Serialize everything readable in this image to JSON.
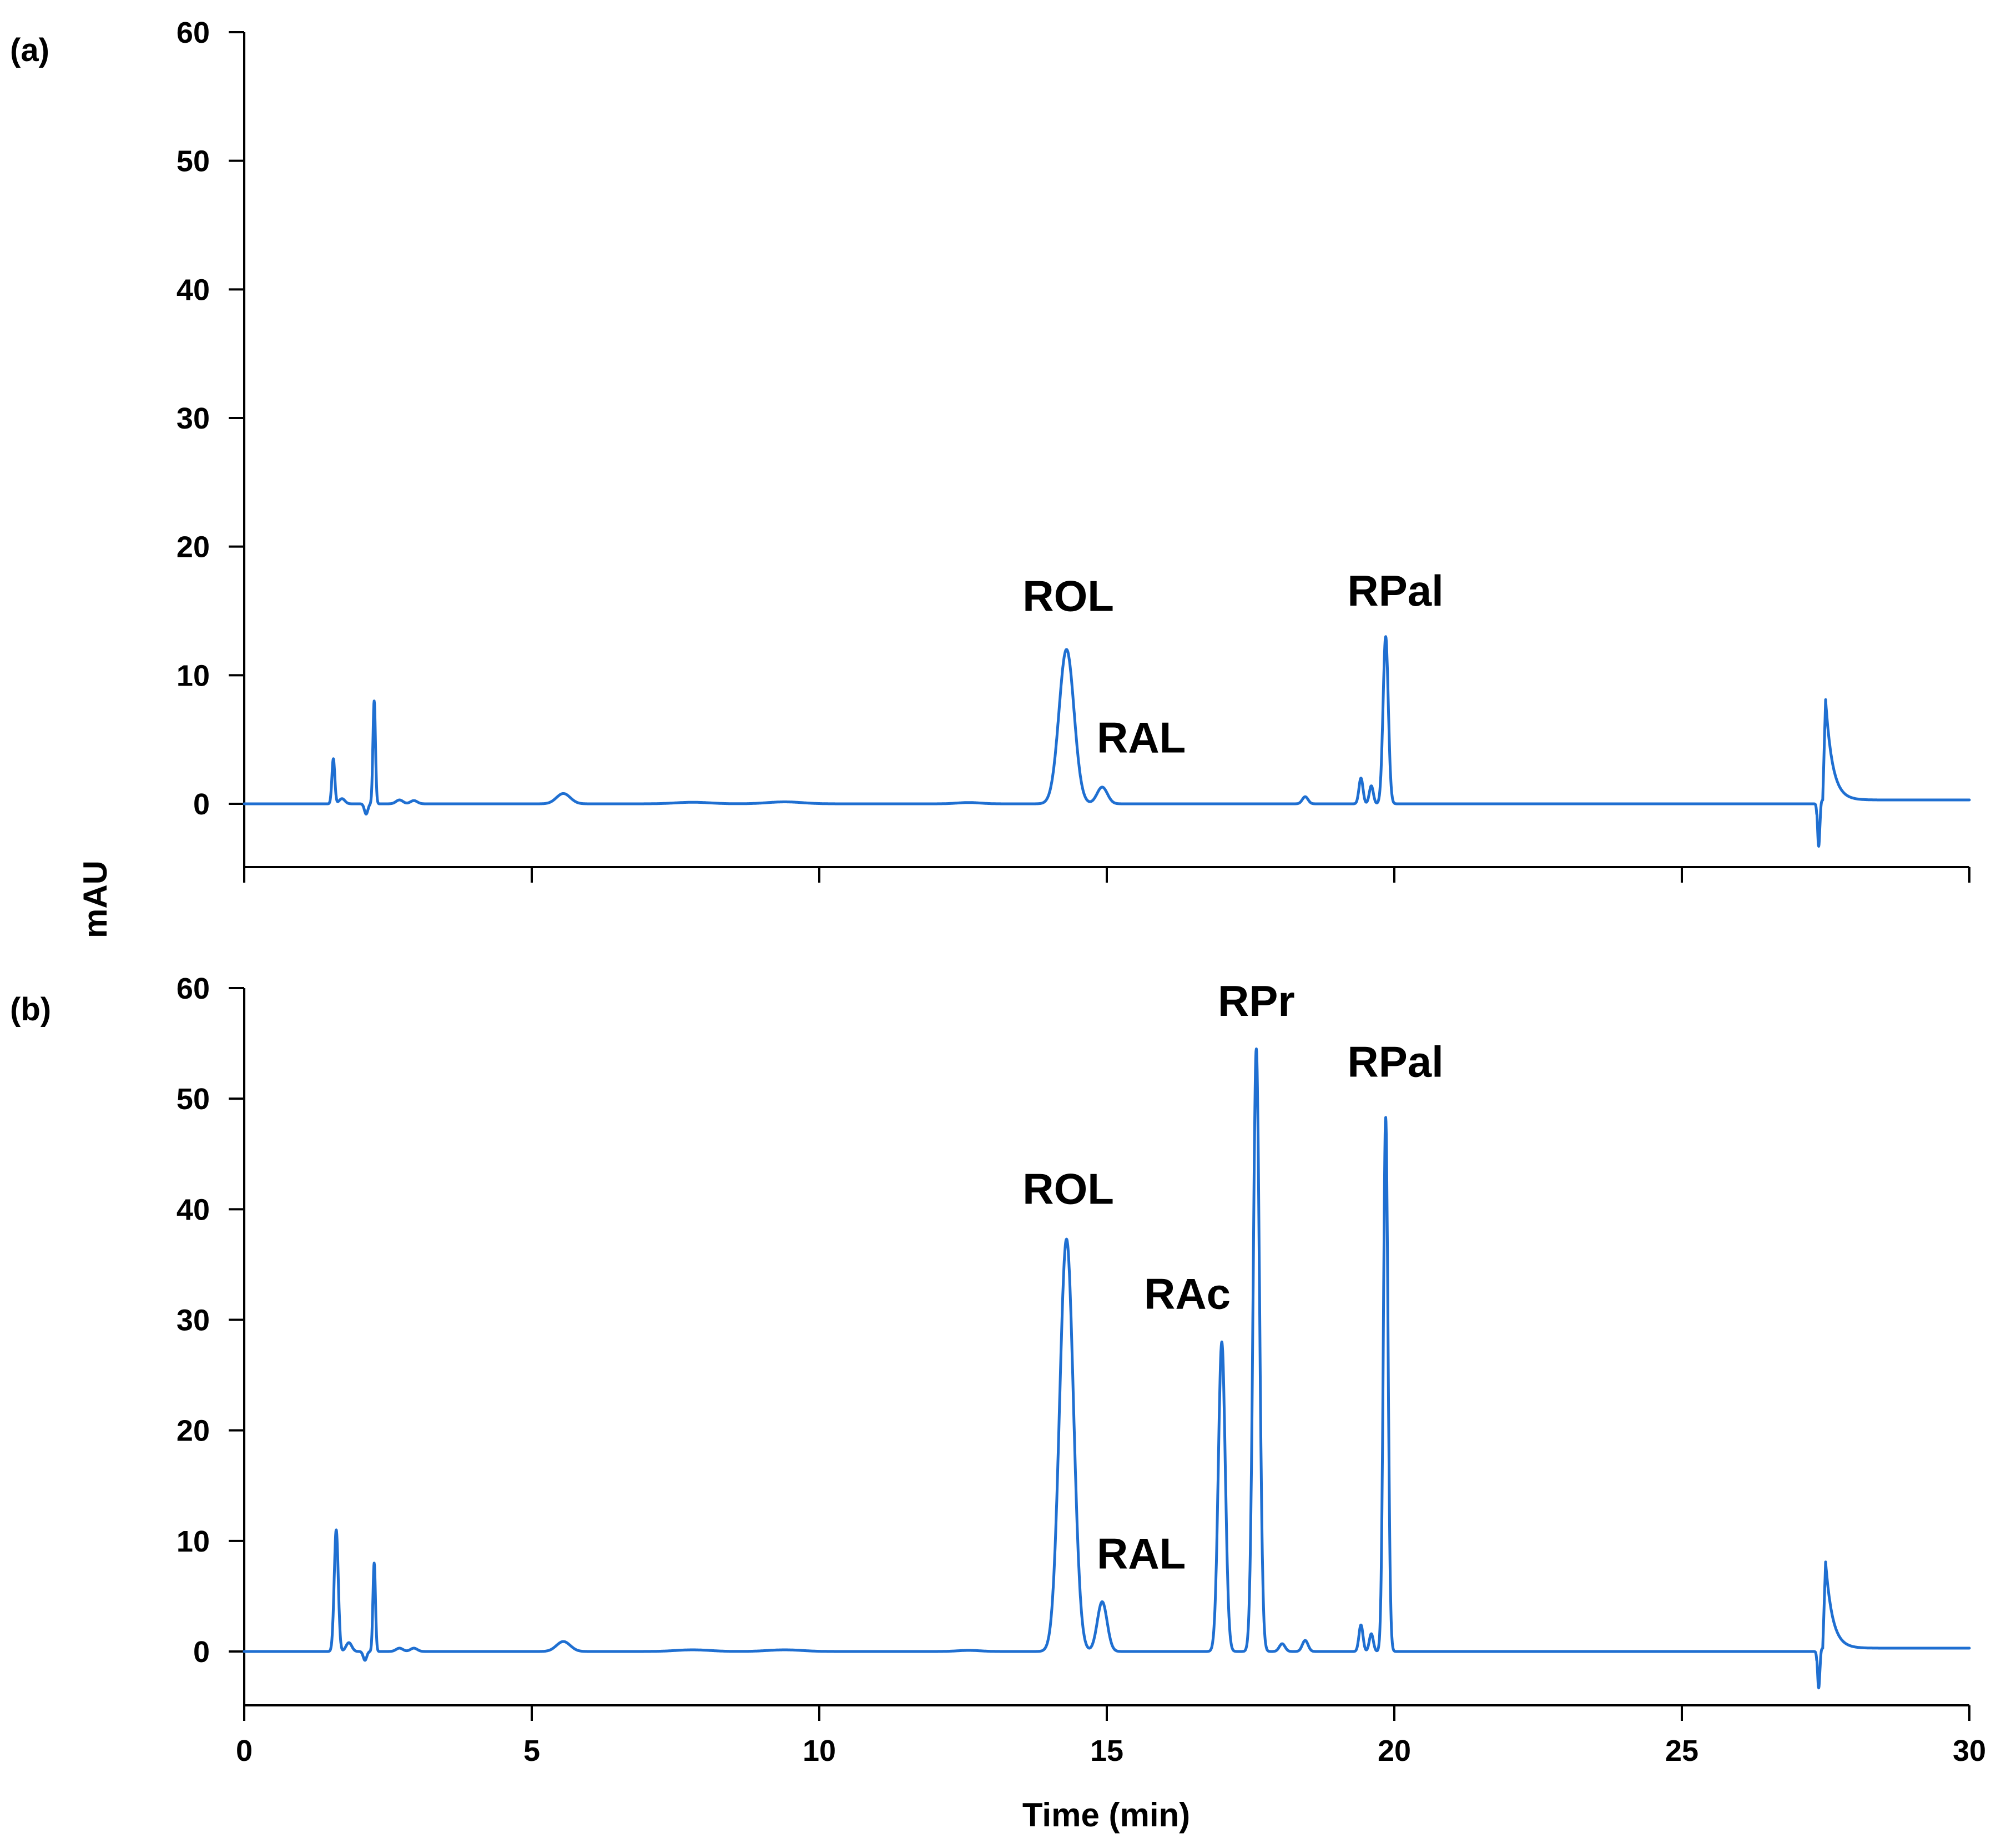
{
  "chart_data": [
    {
      "type": "line",
      "panel_label": "(a)",
      "xlim": [
        0,
        30
      ],
      "ylim": [
        -5,
        60
      ],
      "xticks": [
        0,
        5,
        10,
        15,
        20,
        25,
        30
      ],
      "yticks": [
        0,
        10,
        20,
        30,
        40,
        50,
        60
      ],
      "xlabel": "",
      "ylabel": "mAU",
      "series_color": "#1f6fd1",
      "baseline": 0,
      "peaks": [
        {
          "t": 1.55,
          "h": 3.5,
          "w": 0.025
        },
        {
          "t": 1.7,
          "h": 0.4,
          "w": 0.05
        },
        {
          "t": 2.12,
          "h": -0.8,
          "w": 0.03
        },
        {
          "t": 2.26,
          "h": 8.0,
          "w": 0.022
        },
        {
          "t": 2.7,
          "h": 0.3,
          "w": 0.06
        },
        {
          "t": 2.95,
          "h": 0.25,
          "w": 0.06
        },
        {
          "t": 5.55,
          "h": 0.8,
          "w": 0.12
        },
        {
          "t": 7.8,
          "h": 0.12,
          "w": 0.3
        },
        {
          "t": 9.4,
          "h": 0.15,
          "w": 0.3
        },
        {
          "t": 12.6,
          "h": 0.1,
          "w": 0.2
        },
        {
          "t": 14.3,
          "h": 12.0,
          "w": 0.13
        },
        {
          "t": 14.92,
          "h": 1.3,
          "w": 0.09
        },
        {
          "t": 18.45,
          "h": 0.55,
          "w": 0.05
        },
        {
          "t": 19.42,
          "h": 2.0,
          "w": 0.035
        },
        {
          "t": 19.6,
          "h": 1.4,
          "w": 0.035
        },
        {
          "t": 19.85,
          "h": 13.0,
          "w": 0.045
        }
      ],
      "step": {
        "t": 27.35,
        "after": 0.3
      },
      "artifact": {
        "dip_t": 27.38,
        "dip_h": -3.6,
        "peak_t": 27.5,
        "peak_h": 7.8
      },
      "annotations": [
        {
          "text": "ROL",
          "x": 14.33,
          "y": 15.0
        },
        {
          "text": "RAL",
          "x": 15.6,
          "y": 4.0
        },
        {
          "text": "RPal",
          "x": 20.02,
          "y": 15.4
        }
      ]
    },
    {
      "type": "line",
      "panel_label": "(b)",
      "xlim": [
        0,
        30
      ],
      "ylim": [
        -5,
        60
      ],
      "xticks": [
        0,
        5,
        10,
        15,
        20,
        25,
        30
      ],
      "yticks": [
        0,
        10,
        20,
        30,
        40,
        50,
        60
      ],
      "xlabel": "Time (min)",
      "ylabel": "mAU",
      "series_color": "#1f6fd1",
      "baseline": 0,
      "peaks": [
        {
          "t": 1.6,
          "h": 11.0,
          "w": 0.035
        },
        {
          "t": 1.82,
          "h": 0.8,
          "w": 0.05
        },
        {
          "t": 2.1,
          "h": -0.8,
          "w": 0.03
        },
        {
          "t": 2.26,
          "h": 8.0,
          "w": 0.022
        },
        {
          "t": 2.7,
          "h": 0.3,
          "w": 0.06
        },
        {
          "t": 2.95,
          "h": 0.3,
          "w": 0.06
        },
        {
          "t": 5.55,
          "h": 0.9,
          "w": 0.12
        },
        {
          "t": 7.8,
          "h": 0.15,
          "w": 0.3
        },
        {
          "t": 9.4,
          "h": 0.15,
          "w": 0.3
        },
        {
          "t": 12.6,
          "h": 0.1,
          "w": 0.2
        },
        {
          "t": 14.3,
          "h": 37.3,
          "w": 0.12
        },
        {
          "t": 14.92,
          "h": 4.5,
          "w": 0.085
        },
        {
          "t": 17.0,
          "h": 28.0,
          "w": 0.06
        },
        {
          "t": 17.6,
          "h": 54.5,
          "w": 0.055
        },
        {
          "t": 18.05,
          "h": 0.7,
          "w": 0.05
        },
        {
          "t": 18.45,
          "h": 1.0,
          "w": 0.05
        },
        {
          "t": 19.42,
          "h": 2.4,
          "w": 0.035
        },
        {
          "t": 19.6,
          "h": 1.6,
          "w": 0.035
        },
        {
          "t": 19.85,
          "h": 48.3,
          "w": 0.04
        }
      ],
      "step": {
        "t": 27.35,
        "after": 0.3
      },
      "artifact": {
        "dip_t": 27.38,
        "dip_h": -3.6,
        "peak_t": 27.5,
        "peak_h": 7.8
      },
      "annotations": [
        {
          "text": "ROL",
          "x": 14.33,
          "y": 40.5
        },
        {
          "text": "RAL",
          "x": 15.6,
          "y": 7.5
        },
        {
          "text": "RAc",
          "x": 16.4,
          "y": 31.0
        },
        {
          "text": "RPr",
          "x": 17.6,
          "y": 57.5
        },
        {
          "text": "RPal",
          "x": 20.02,
          "y": 52.0
        }
      ]
    }
  ]
}
